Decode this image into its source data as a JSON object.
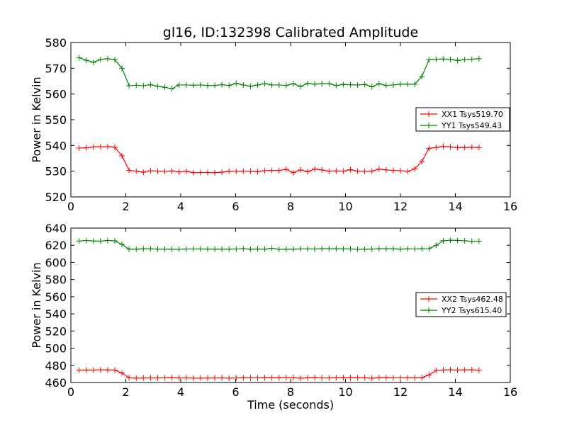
{
  "chart_data": [
    {
      "type": "line",
      "title": "gl16, ID:132398 Calibrated Amplitude",
      "xlabel": "",
      "ylabel": "Power in Kelvin",
      "xlim": [
        0,
        16
      ],
      "ylim": [
        520,
        580
      ],
      "xticks": [
        "0",
        "2",
        "4",
        "6",
        "8",
        "10",
        "12",
        "14",
        "16"
      ],
      "yticks": [
        "520",
        "530",
        "540",
        "550",
        "560",
        "570",
        "580"
      ],
      "grid": false,
      "legend_position": "center-right",
      "x": [
        0.3,
        0.56,
        0.82,
        1.08,
        1.34,
        1.6,
        1.86,
        2.12,
        2.38,
        2.64,
        2.9,
        3.16,
        3.42,
        3.68,
        3.94,
        4.2,
        4.46,
        4.72,
        4.98,
        5.24,
        5.5,
        5.76,
        6.02,
        6.28,
        6.54,
        6.8,
        7.06,
        7.32,
        7.58,
        7.84,
        8.1,
        8.36,
        8.62,
        8.88,
        9.14,
        9.4,
        9.66,
        9.92,
        10.18,
        10.44,
        10.7,
        10.96,
        11.22,
        11.48,
        11.74,
        12.0,
        12.26,
        12.52,
        12.78,
        13.04,
        13.3,
        13.56,
        13.82,
        14.08,
        14.34,
        14.6,
        14.86
      ],
      "series": [
        {
          "name": "XX1 Tsys519.70",
          "color": "#ff0000",
          "values": [
            539.0,
            539.1,
            539.4,
            539.5,
            539.5,
            539.3,
            536.0,
            530.3,
            530.0,
            529.6,
            530.2,
            530.0,
            529.9,
            530.1,
            529.7,
            530.0,
            529.4,
            529.5,
            529.5,
            529.4,
            529.6,
            530.0,
            529.9,
            530.0,
            530.0,
            529.8,
            530.2,
            530.3,
            530.3,
            530.7,
            529.4,
            530.5,
            529.8,
            530.8,
            530.5,
            530.0,
            530.1,
            530.0,
            530.6,
            530.0,
            529.9,
            530.0,
            530.8,
            530.5,
            530.3,
            530.2,
            529.9,
            530.9,
            533.8,
            538.9,
            539.2,
            539.6,
            539.4,
            539.2,
            539.2,
            539.3,
            539.2
          ]
        },
        {
          "name": "YY1 Tsys549.43",
          "color": "#008000",
          "values": [
            574.1,
            573.1,
            572.3,
            573.4,
            573.7,
            573.3,
            570.0,
            563.2,
            563.4,
            563.2,
            563.6,
            563.0,
            562.6,
            562.0,
            563.5,
            563.5,
            563.4,
            563.5,
            563.3,
            563.3,
            563.6,
            563.3,
            564.1,
            563.5,
            563.0,
            563.5,
            564.0,
            563.5,
            563.5,
            563.3,
            564.0,
            562.9,
            564.1,
            563.8,
            564.0,
            564.0,
            563.3,
            563.7,
            563.6,
            563.5,
            563.7,
            562.8,
            564.0,
            563.3,
            563.5,
            563.8,
            563.8,
            563.8,
            566.8,
            573.3,
            573.5,
            573.6,
            573.4,
            573.0,
            573.4,
            573.5,
            573.7
          ]
        }
      ]
    },
    {
      "type": "line",
      "title": "",
      "xlabel": "Time (seconds)",
      "ylabel": "Power in Kelvin",
      "xlim": [
        0,
        16
      ],
      "ylim": [
        460,
        640
      ],
      "xticks": [
        "0",
        "2",
        "4",
        "6",
        "8",
        "10",
        "12",
        "14",
        "16"
      ],
      "yticks": [
        "460",
        "480",
        "500",
        "520",
        "540",
        "560",
        "580",
        "600",
        "620",
        "640"
      ],
      "grid": false,
      "legend_position": "center-right",
      "x": [
        0.3,
        0.56,
        0.82,
        1.08,
        1.34,
        1.6,
        1.86,
        2.12,
        2.38,
        2.64,
        2.9,
        3.16,
        3.42,
        3.68,
        3.94,
        4.2,
        4.46,
        4.72,
        4.98,
        5.24,
        5.5,
        5.76,
        6.02,
        6.28,
        6.54,
        6.8,
        7.06,
        7.32,
        7.58,
        7.84,
        8.1,
        8.36,
        8.62,
        8.88,
        9.14,
        9.4,
        9.66,
        9.92,
        10.18,
        10.44,
        10.7,
        10.96,
        11.22,
        11.48,
        11.74,
        12.0,
        12.26,
        12.52,
        12.78,
        13.04,
        13.3,
        13.56,
        13.82,
        14.08,
        14.34,
        14.6,
        14.86
      ],
      "series": [
        {
          "name": "XX2 Tsys462.48",
          "color": "#ff0000",
          "values": [
            474.5,
            474.6,
            474.5,
            474.9,
            474.7,
            474.5,
            471.0,
            465.5,
            465.0,
            465.3,
            465.3,
            465.3,
            465.4,
            465.7,
            465.3,
            465.4,
            465.0,
            465.2,
            465.2,
            465.3,
            465.4,
            465.0,
            465.3,
            465.5,
            465.4,
            465.4,
            465.5,
            465.5,
            465.6,
            465.7,
            465.8,
            465.0,
            465.5,
            465.7,
            465.4,
            465.3,
            465.5,
            465.7,
            465.5,
            465.6,
            465.6,
            465.0,
            465.6,
            465.6,
            465.4,
            465.4,
            465.5,
            465.4,
            465.6,
            468.8,
            474.0,
            474.6,
            474.9,
            474.5,
            474.8,
            474.9,
            474.3
          ]
        },
        {
          "name": "YY2 Tsys615.40",
          "color": "#008000",
          "values": [
            624.9,
            625.6,
            624.9,
            624.8,
            625.6,
            625.1,
            621.0,
            615.4,
            615.3,
            615.8,
            615.8,
            615.3,
            615.3,
            615.3,
            615.2,
            615.6,
            615.6,
            615.7,
            615.4,
            615.4,
            615.3,
            615.4,
            615.6,
            616.0,
            615.3,
            615.5,
            615.3,
            616.5,
            615.2,
            615.3,
            615.3,
            615.7,
            615.7,
            615.6,
            615.9,
            616.0,
            615.8,
            615.7,
            615.7,
            615.2,
            615.3,
            615.5,
            615.9,
            615.8,
            615.8,
            615.3,
            615.8,
            615.6,
            615.9,
            616.1,
            620.0,
            625.3,
            625.8,
            625.7,
            625.2,
            624.6,
            624.7
          ]
        }
      ]
    }
  ]
}
